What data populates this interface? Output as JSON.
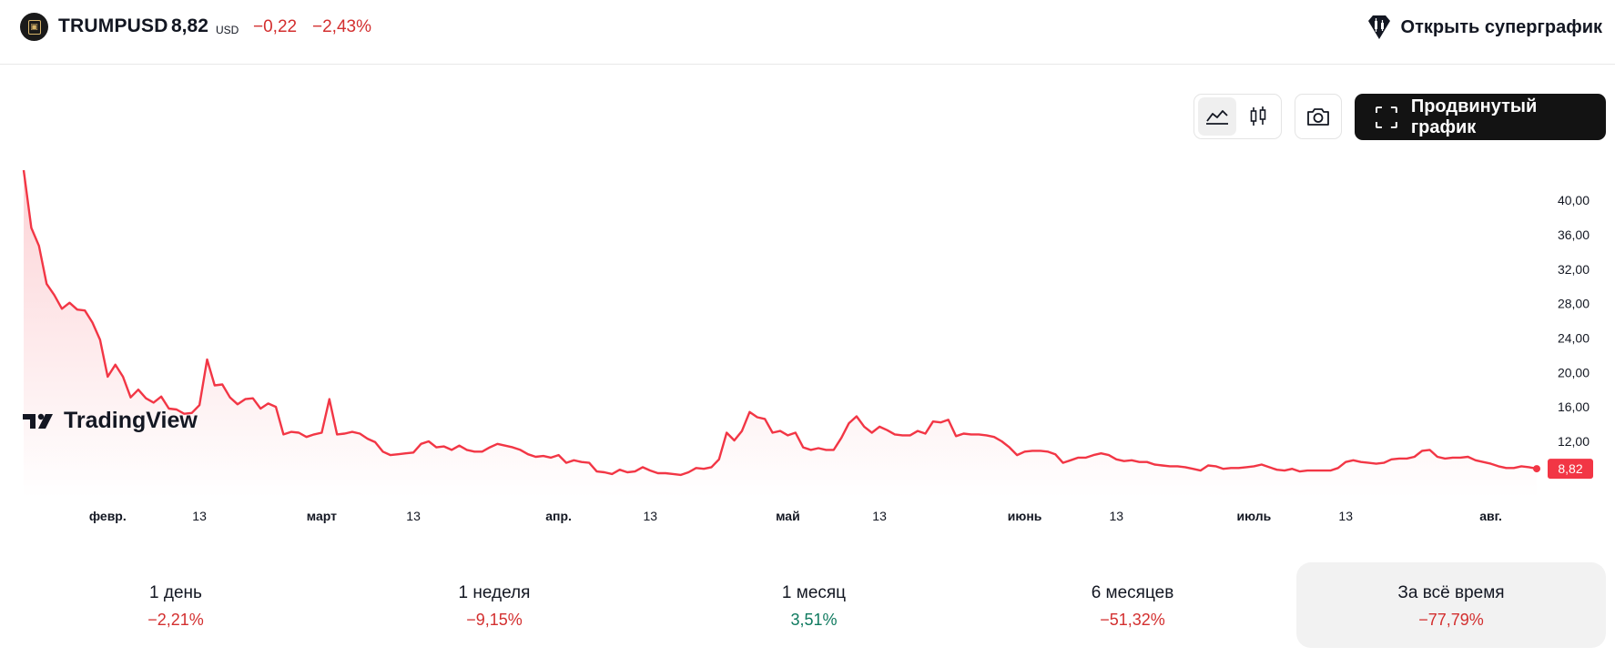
{
  "header": {
    "symbol": "TRUMPUSD",
    "price": "8,82",
    "currency": "USD",
    "change": "−0,22",
    "change_percent": "−2,43%",
    "supergraph_label": "Открыть суперграфик"
  },
  "toolbar": {
    "line_chart_icon": "line-chart-icon",
    "candles_icon": "candles-icon",
    "camera_icon": "camera-icon",
    "advanced_chart_label": "Продвинутый график"
  },
  "chart_data": {
    "type": "area",
    "line_color": "#f23645",
    "watermark": "TradingView",
    "last_value": 8.82,
    "last_value_label": "8,82",
    "ylim": [
      6.5,
      43.5
    ],
    "y_ticks": [
      12,
      16,
      20,
      24,
      28,
      32,
      36,
      40
    ],
    "y_tick_labels": [
      "12,00",
      "16,00",
      "20,00",
      "24,00",
      "28,00",
      "32,00",
      "36,00",
      "40,00"
    ],
    "x_tick_labels": [
      {
        "label": "февр.",
        "bold": true,
        "index": 11
      },
      {
        "label": "13",
        "bold": false,
        "index": 23
      },
      {
        "label": "март",
        "bold": true,
        "index": 39
      },
      {
        "label": "13",
        "bold": false,
        "index": 51
      },
      {
        "label": "апр.",
        "bold": true,
        "index": 70
      },
      {
        "label": "13",
        "bold": false,
        "index": 82
      },
      {
        "label": "май",
        "bold": true,
        "index": 100
      },
      {
        "label": "13",
        "bold": false,
        "index": 112
      },
      {
        "label": "июнь",
        "bold": true,
        "index": 131
      },
      {
        "label": "13",
        "bold": false,
        "index": 143
      },
      {
        "label": "июль",
        "bold": true,
        "index": 161
      },
      {
        "label": "13",
        "bold": false,
        "index": 173
      },
      {
        "label": "авг.",
        "bold": true,
        "index": 192
      }
    ],
    "values": [
      43.5,
      36.8,
      34.7,
      30.3,
      29.0,
      27.4,
      28.1,
      27.3,
      27.2,
      25.8,
      23.8,
      19.5,
      20.9,
      19.5,
      17.1,
      18.0,
      17.0,
      16.5,
      17.2,
      15.8,
      15.7,
      15.2,
      15.3,
      16.2,
      21.5,
      18.5,
      18.6,
      17.1,
      16.3,
      16.9,
      17.0,
      15.8,
      16.4,
      16.0,
      12.8,
      13.1,
      13.0,
      12.5,
      12.8,
      13.0,
      16.9,
      12.8,
      12.9,
      13.1,
      12.9,
      12.3,
      11.9,
      10.8,
      10.4,
      10.5,
      10.6,
      10.7,
      11.7,
      12.0,
      11.3,
      11.4,
      11.0,
      11.5,
      11.0,
      10.8,
      10.8,
      11.3,
      11.7,
      11.5,
      11.3,
      11.0,
      10.5,
      10.2,
      10.3,
      10.1,
      10.4,
      9.5,
      9.8,
      9.6,
      9.5,
      8.5,
      8.4,
      8.2,
      8.7,
      8.4,
      8.5,
      9.0,
      8.6,
      8.3,
      8.3,
      8.2,
      8.1,
      8.4,
      8.9,
      8.8,
      9.0,
      9.9,
      13.0,
      12.1,
      13.2,
      15.4,
      14.8,
      14.6,
      13.0,
      13.2,
      12.7,
      13.0,
      11.3,
      11.0,
      11.2,
      11.0,
      11.0,
      12.4,
      14.1,
      14.9,
      13.7,
      13.0,
      13.7,
      13.3,
      12.8,
      12.7,
      12.7,
      13.2,
      12.9,
      14.3,
      14.2,
      14.5,
      12.6,
      12.9,
      12.8,
      12.8,
      12.7,
      12.5,
      12.0,
      11.3,
      10.4,
      10.8,
      10.9,
      10.9,
      10.8,
      10.5,
      9.5,
      9.8,
      10.1,
      10.1,
      10.4,
      10.6,
      10.4,
      9.9,
      9.7,
      9.8,
      9.6,
      9.6,
      9.3,
      9.2,
      9.1,
      9.1,
      9.0,
      8.8,
      8.6,
      9.2,
      9.1,
      8.8,
      8.9,
      8.9,
      9.0,
      9.1,
      9.3,
      9.0,
      8.7,
      8.6,
      8.8,
      8.5,
      8.6,
      8.6,
      8.6,
      8.6,
      8.9,
      9.6,
      9.8,
      9.6,
      9.5,
      9.4,
      9.5,
      9.9,
      10.0,
      10.0,
      10.2,
      10.9,
      11.0,
      10.2,
      10.0,
      10.1,
      10.1,
      10.2,
      9.8,
      9.6,
      9.4,
      9.1,
      8.9,
      8.9,
      9.1,
      9.0,
      8.82
    ]
  },
  "periods": [
    {
      "label": "1 день",
      "value": "−2,21%",
      "trend": "neg"
    },
    {
      "label": "1 неделя",
      "value": "−9,15%",
      "trend": "neg"
    },
    {
      "label": "1 месяц",
      "value": "3,51%",
      "trend": "pos"
    },
    {
      "label": "6 месяцев",
      "value": "−51,32%",
      "trend": "neg"
    },
    {
      "label": "За всё время",
      "value": "−77,79%",
      "trend": "neg",
      "selected": true
    }
  ]
}
